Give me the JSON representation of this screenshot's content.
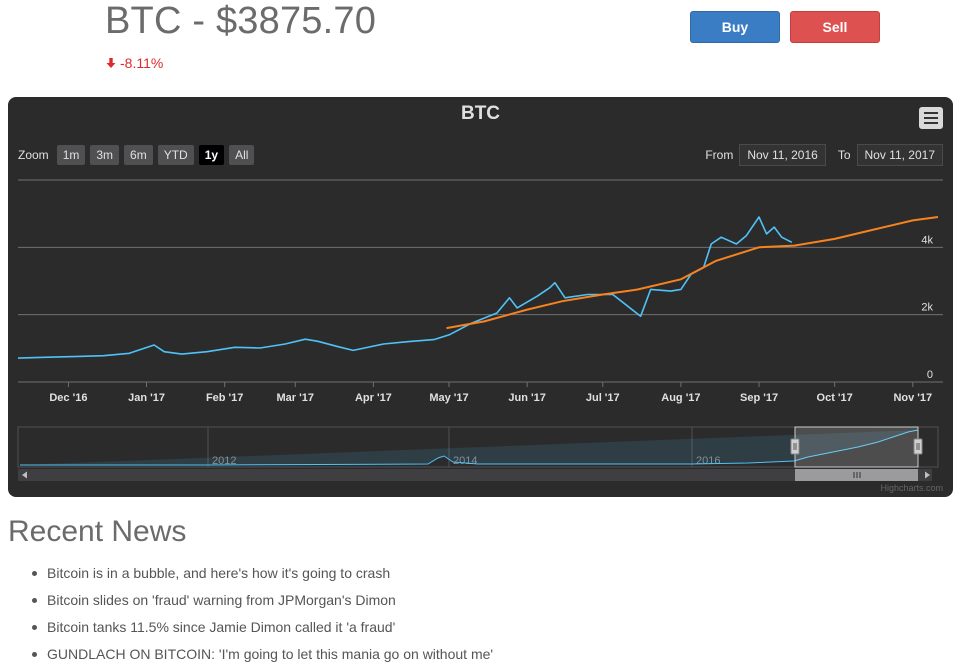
{
  "header": {
    "title": "BTC - $3875.70",
    "change": "-8.11%",
    "change_color": "#dd2b2b",
    "change_icon": "arrow-down-icon"
  },
  "actions": {
    "buy_label": "Buy",
    "sell_label": "Sell",
    "buy_color": "#3b7dc4",
    "sell_color": "#dd5150"
  },
  "chart_toolbar": {
    "zoom_label": "Zoom",
    "zoom_buttons": [
      "1m",
      "3m",
      "6m",
      "YTD",
      "1y",
      "All"
    ],
    "active_zoom": "1y",
    "from_label": "From",
    "from_value": "Nov 11, 2016",
    "to_label": "To",
    "to_value": "Nov 11, 2017",
    "menu_icon": "hamburger-menu-icon",
    "credit": "Highcharts.com"
  },
  "chart_data": {
    "type": "line",
    "title": "BTC",
    "x_tick_labels": [
      "Dec '16",
      "Jan '17",
      "Feb '17",
      "Mar '17",
      "Apr '17",
      "May '17",
      "Jun '17",
      "Jul '17",
      "Aug '17",
      "Sep '17",
      "Oct '17",
      "Nov '17"
    ],
    "y_tick_labels": [
      "0",
      "2k",
      "4k"
    ],
    "ylim": [
      0,
      6000
    ],
    "xlim": [
      "2016-11-11",
      "2017-11-11"
    ],
    "grid": true,
    "series": [
      {
        "color": "#4fc3f7",
        "points": [
          [
            "2016-11-11",
            710
          ],
          [
            "2016-11-25",
            740
          ],
          [
            "2016-12-05",
            760
          ],
          [
            "2016-12-15",
            780
          ],
          [
            "2016-12-25",
            850
          ],
          [
            "2017-01-04",
            1100
          ],
          [
            "2017-01-08",
            900
          ],
          [
            "2017-01-15",
            830
          ],
          [
            "2017-01-25",
            900
          ],
          [
            "2017-02-05",
            1030
          ],
          [
            "2017-02-15",
            1010
          ],
          [
            "2017-02-25",
            1130
          ],
          [
            "2017-03-05",
            1270
          ],
          [
            "2017-03-10",
            1210
          ],
          [
            "2017-03-18",
            1050
          ],
          [
            "2017-03-24",
            940
          ],
          [
            "2017-04-05",
            1130
          ],
          [
            "2017-04-15",
            1200
          ],
          [
            "2017-04-25",
            1260
          ],
          [
            "2017-05-01",
            1400
          ],
          [
            "2017-05-10",
            1750
          ],
          [
            "2017-05-20",
            2050
          ],
          [
            "2017-05-25",
            2500
          ],
          [
            "2017-05-28",
            2200
          ],
          [
            "2017-06-05",
            2550
          ],
          [
            "2017-06-10",
            2800
          ],
          [
            "2017-06-12",
            2950
          ],
          [
            "2017-06-16",
            2500
          ],
          [
            "2017-06-25",
            2600
          ],
          [
            "2017-07-05",
            2600
          ],
          [
            "2017-07-16",
            1950
          ],
          [
            "2017-07-20",
            2750
          ],
          [
            "2017-07-28",
            2700
          ],
          [
            "2017-08-01",
            2750
          ],
          [
            "2017-08-05",
            3200
          ],
          [
            "2017-08-10",
            3400
          ],
          [
            "2017-08-13",
            4100
          ],
          [
            "2017-08-17",
            4300
          ],
          [
            "2017-08-23",
            4100
          ],
          [
            "2017-08-27",
            4350
          ],
          [
            "2017-09-01",
            4900
          ],
          [
            "2017-09-04",
            4400
          ],
          [
            "2017-09-07",
            4600
          ],
          [
            "2017-09-10",
            4300
          ],
          [
            "2017-09-14",
            4150
          ]
        ]
      },
      {
        "color": "#f7831f",
        "points": [
          [
            "2017-04-30",
            1600
          ],
          [
            "2017-05-15",
            1800
          ],
          [
            "2017-06-01",
            2150
          ],
          [
            "2017-06-15",
            2400
          ],
          [
            "2017-07-01",
            2600
          ],
          [
            "2017-07-15",
            2750
          ],
          [
            "2017-08-01",
            3050
          ],
          [
            "2017-08-15",
            3600
          ],
          [
            "2017-09-01",
            4000
          ],
          [
            "2017-09-15",
            4050
          ],
          [
            "2017-10-01",
            4250
          ],
          [
            "2017-10-15",
            4500
          ],
          [
            "2017-11-01",
            4800
          ],
          [
            "2017-11-11",
            4900
          ]
        ]
      }
    ],
    "navigator": {
      "tick_labels": [
        "2012",
        "2014",
        "2016"
      ],
      "handle_icon": "navigator-handle-icon",
      "scroll_icons": [
        "scroll-left-icon",
        "scroll-right-icon"
      ]
    }
  },
  "news": {
    "title": "Recent News",
    "items": [
      "Bitcoin is in a bubble, and here's how it's going to crash",
      "Bitcoin slides on 'fraud' warning from JPMorgan's Dimon",
      "Bitcoin tanks 11.5% since Jamie Dimon called it 'a fraud'",
      "GUNDLACH ON BITCOIN: 'I'm going to let this mania go on without me'"
    ]
  }
}
